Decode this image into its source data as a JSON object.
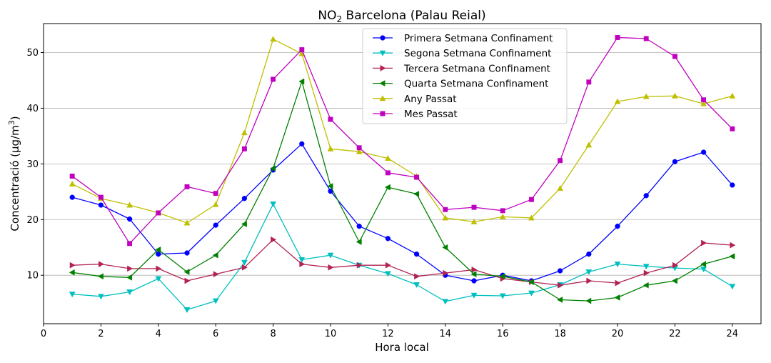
{
  "chart_data": {
    "type": "line",
    "title_main": "NO",
    "title_sub": "2",
    "title_rest": " Barcelona (Palau Reial)",
    "xlabel": "Hora local",
    "ylabel_main": "Concentració (µg/m",
    "ylabel_sup": "3",
    "ylabel_end": ")",
    "xlim": [
      0,
      25
    ],
    "ylim": [
      1.3,
      55.2
    ],
    "xticks": [
      0,
      2,
      4,
      6,
      8,
      10,
      12,
      14,
      16,
      18,
      20,
      22,
      24
    ],
    "yticks": [
      10,
      20,
      30,
      40,
      50
    ],
    "grid": "horizontal",
    "legend_position": "top-center",
    "x": [
      1,
      2,
      3,
      4,
      5,
      6,
      7,
      8,
      9,
      10,
      11,
      12,
      13,
      14,
      15,
      16,
      17,
      18,
      19,
      20,
      21,
      22,
      23,
      24
    ],
    "series": [
      {
        "name": "Primera Setmana Confinament",
        "color": "#0000ff",
        "marker": "circle",
        "values": [
          24.0,
          22.6,
          20.1,
          13.8,
          14.0,
          19.0,
          23.8,
          28.9,
          33.6,
          25.1,
          18.8,
          16.6,
          13.8,
          10.0,
          9.0,
          10.0,
          9.0,
          10.8,
          13.8,
          18.8,
          24.3,
          30.4,
          32.1,
          26.2
        ]
      },
      {
        "name": "Segona Setmana Confinament",
        "color": "#00bfbf",
        "marker": "triangle-down",
        "values": [
          6.6,
          6.2,
          7.0,
          9.4,
          3.8,
          5.4,
          12.3,
          22.8,
          12.8,
          13.6,
          11.8,
          10.3,
          8.3,
          5.3,
          6.4,
          6.3,
          6.8,
          8.3,
          10.6,
          12.0,
          11.6,
          11.3,
          11.1,
          8.0
        ]
      },
      {
        "name": "Tercera Setmana Confinament",
        "color": "#b22253",
        "marker": "triangle-right",
        "values": [
          11.8,
          12.0,
          11.2,
          11.2,
          9.0,
          10.2,
          11.4,
          16.4,
          12.0,
          11.4,
          11.8,
          11.8,
          9.8,
          10.4,
          11.0,
          9.4,
          8.8,
          8.2,
          9.0,
          8.6,
          10.4,
          11.8,
          15.8,
          15.4
        ]
      },
      {
        "name": "Quarta Setmana Confinament",
        "color": "#008000",
        "marker": "triangle-left",
        "values": [
          10.5,
          9.8,
          9.6,
          14.6,
          10.6,
          13.6,
          19.2,
          29.2,
          44.8,
          26.0,
          16.0,
          25.8,
          24.6,
          15.0,
          10.2,
          9.8,
          8.8,
          5.6,
          5.4,
          6.0,
          8.2,
          9.0,
          12.0,
          13.4
        ]
      },
      {
        "name": "Any Passat",
        "color": "#bfbf00",
        "marker": "triangle-up",
        "values": [
          26.4,
          23.8,
          22.6,
          21.2,
          19.4,
          22.7,
          35.6,
          52.4,
          49.8,
          32.7,
          32.2,
          31.0,
          27.8,
          20.3,
          19.6,
          20.5,
          20.3,
          25.6,
          33.4,
          41.2,
          42.1,
          42.2,
          40.8,
          42.2
        ]
      },
      {
        "name": "Mes Passat",
        "color": "#bf00bf",
        "marker": "square",
        "values": [
          27.8,
          24.0,
          15.7,
          21.2,
          25.9,
          24.7,
          32.7,
          45.2,
          50.5,
          38.0,
          32.9,
          28.4,
          27.6,
          21.8,
          22.2,
          21.6,
          23.6,
          30.6,
          44.7,
          52.7,
          52.5,
          49.3,
          41.5,
          36.3
        ]
      }
    ]
  }
}
